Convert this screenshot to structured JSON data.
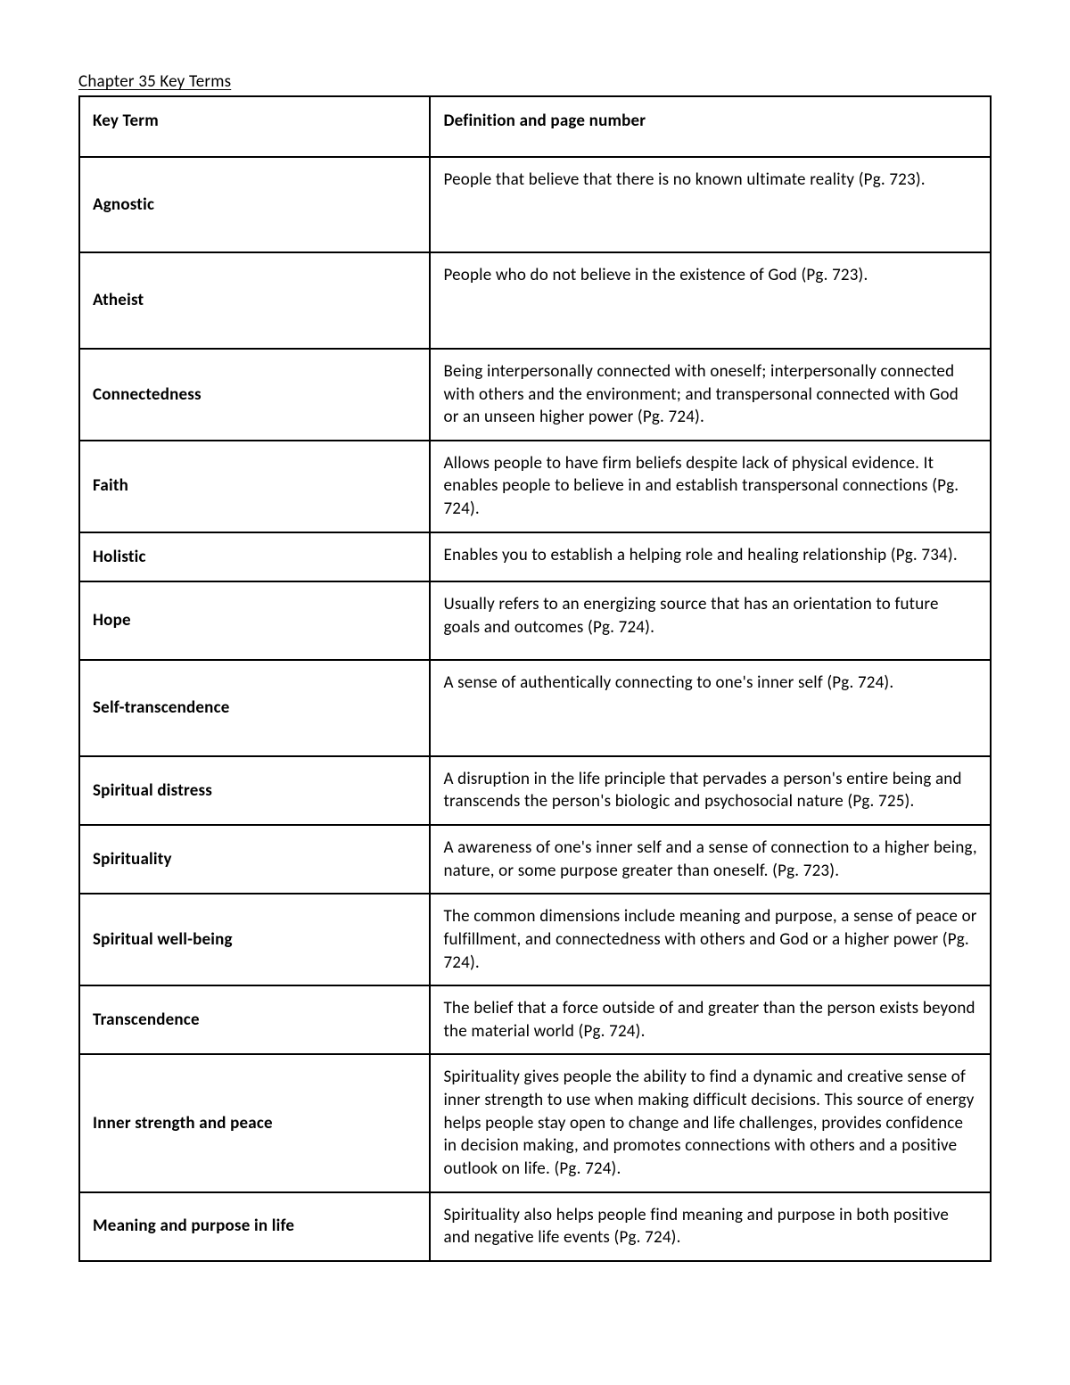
{
  "title": "Chapter 35 Key Terms",
  "table": {
    "type": "table",
    "border_color": "#000000",
    "background_color": "#ffffff",
    "text_color": "#000000",
    "font_size_pt": 14,
    "columns": [
      {
        "label": "Key Term",
        "width_pct": 38.5,
        "align": "left",
        "font_weight": 700
      },
      {
        "label": "Definition and page number",
        "width_pct": 61.5,
        "align": "left",
        "font_weight": 400
      }
    ],
    "rows": [
      {
        "term": "Agnostic",
        "definition": "People that believe that there is no known ultimate reality (Pg. 723)."
      },
      {
        "term": "Atheist",
        "definition": "People who do not believe in the existence of God (Pg. 723)."
      },
      {
        "term": "Connectedness",
        "definition": "Being interpersonally connected with oneself; interpersonally connected with others and the environment; and transpersonal connected with God or an unseen higher power (Pg. 724)."
      },
      {
        "term": "Faith",
        "definition": "Allows people to have firm beliefs despite lack of physical evidence. It enables people to believe in and establish transpersonal connections (Pg. 724)."
      },
      {
        "term": "Holistic",
        "definition": "Enables you to establish a helping role and healing relationship (Pg. 734)."
      },
      {
        "term": "Hope",
        "definition": "Usually refers to an energizing source that has an orientation to future goals and outcomes (Pg. 724)."
      },
      {
        "term": "Self-transcendence",
        "definition": "A sense of authentically connecting to one's inner self (Pg. 724)."
      },
      {
        "term": "Spiritual distress",
        "definition": "A disruption in the life principle that pervades a person's entire being and transcends the person's biologic and psychosocial nature (Pg. 725)."
      },
      {
        "term": "Spirituality",
        "definition": "A awareness of one's inner self and a sense of connection to a higher being, nature, or some purpose greater than oneself. (Pg. 723)."
      },
      {
        "term": "Spiritual well-being",
        "definition": "The common dimensions include meaning and purpose, a sense of peace or fulfillment, and connectedness with others and God or a higher power (Pg. 724)."
      },
      {
        "term": "Transcendence",
        "definition": "The belief that a force outside of and greater than the person exists beyond the material world (Pg. 724)."
      },
      {
        "term": "Inner strength and peace",
        "definition": "Spirituality gives people the ability to find a dynamic and creative sense of inner strength to use when making difficult decisions. This source of energy helps people stay open to change and life challenges, provides confidence in decision making, and promotes connections with others and a positive outlook on life. (Pg. 724)."
      },
      {
        "term": "Meaning and purpose in life",
        "definition": "Spirituality also helps people find meaning and purpose in both positive and negative life events (Pg. 724)."
      }
    ]
  }
}
